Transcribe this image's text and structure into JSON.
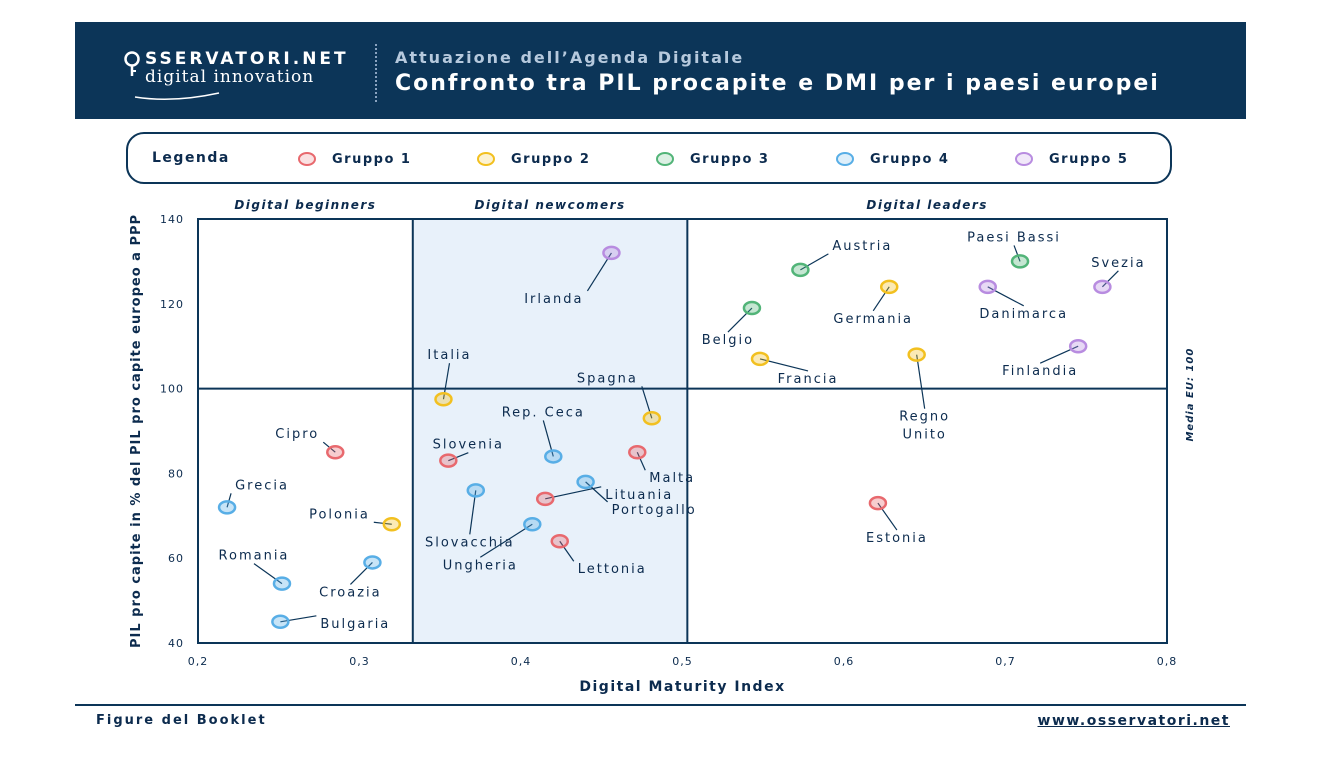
{
  "header": {
    "logo_top": "SSERVATORI.NET",
    "logo_bottom": "digital innovation",
    "subtitle": "Attuazione dell’Agenda Digitale",
    "title": "Confronto tra PIL procapite e DMI per i paesi europei"
  },
  "legend": {
    "title": "Legenda",
    "items": [
      {
        "label": "Gruppo 1",
        "color": "#e8696e"
      },
      {
        "label": "Gruppo 2",
        "color": "#f2c020"
      },
      {
        "label": "Gruppo 3",
        "color": "#52b478"
      },
      {
        "label": "Gruppo 4",
        "color": "#58aee6"
      },
      {
        "label": "Gruppo 5",
        "color": "#b88ce0"
      }
    ]
  },
  "footer": {
    "left": "Figure del Booklet",
    "right": "www.osservatori.net"
  },
  "chart_data": {
    "type": "scatter",
    "title": "Confronto tra PIL procapite e DMI per i paesi europei",
    "xlabel": "Digital Maturity Index",
    "ylabel": "PIL pro capite in % del PIL pro capite europeo a PPP",
    "xlim": [
      0.2,
      0.8
    ],
    "ylim": [
      40,
      140
    ],
    "x_ticks": [
      "0,2",
      "0,3",
      "0,4",
      "0,5",
      "0,6",
      "0,7",
      "0,8"
    ],
    "y_ticks": [
      "40",
      "60",
      "80",
      "100",
      "120",
      "140"
    ],
    "zones": [
      {
        "label": "Digital beginners",
        "from": 0.2,
        "to": 0.333,
        "highlight": false
      },
      {
        "label": "Digital newcomers",
        "from": 0.333,
        "to": 0.503,
        "highlight": true
      },
      {
        "label": "Digital leaders",
        "from": 0.503,
        "to": 0.8,
        "highlight": false
      }
    ],
    "reference_line": {
      "label": "Media EU: 100",
      "y": 100
    },
    "grid": false,
    "groups": [
      "Gruppo 1",
      "Gruppo 2",
      "Gruppo 3",
      "Gruppo 4",
      "Gruppo 5"
    ],
    "points": [
      {
        "label": "Irlanda",
        "x": 0.456,
        "y": 132,
        "group": 5
      },
      {
        "label": "Italia",
        "x": 0.352,
        "y": 97.5,
        "group": 2
      },
      {
        "label": "Spagna",
        "x": 0.481,
        "y": 93,
        "group": 2
      },
      {
        "label": "Rep. Ceca",
        "x": 0.42,
        "y": 84,
        "group": 4
      },
      {
        "label": "Slovenia",
        "x": 0.355,
        "y": 83,
        "group": 1
      },
      {
        "label": "Malta",
        "x": 0.472,
        "y": 85,
        "group": 1
      },
      {
        "label": "Slovacchia",
        "x": 0.372,
        "y": 76,
        "group": 4
      },
      {
        "label": "Portogallo",
        "x": 0.44,
        "y": 78,
        "group": 4
      },
      {
        "label": "Lituania",
        "x": 0.415,
        "y": 74,
        "group": 1
      },
      {
        "label": "Ungheria",
        "x": 0.407,
        "y": 68,
        "group": 4
      },
      {
        "label": "Lettonia",
        "x": 0.424,
        "y": 64,
        "group": 1
      },
      {
        "label": "Cipro",
        "x": 0.285,
        "y": 85,
        "group": 1
      },
      {
        "label": "Grecia",
        "x": 0.218,
        "y": 72,
        "group": 4
      },
      {
        "label": "Polonia",
        "x": 0.32,
        "y": 68,
        "group": 2
      },
      {
        "label": "Romania",
        "x": 0.252,
        "y": 54,
        "group": 4
      },
      {
        "label": "Croazia",
        "x": 0.308,
        "y": 59,
        "group": 4
      },
      {
        "label": "Bulgaria",
        "x": 0.251,
        "y": 45,
        "group": 4
      },
      {
        "label": "Austria",
        "x": 0.573,
        "y": 128,
        "group": 3
      },
      {
        "label": "Paesi Bassi",
        "x": 0.709,
        "y": 130,
        "group": 3
      },
      {
        "label": "Svezia",
        "x": 0.76,
        "y": 124,
        "group": 5
      },
      {
        "label": "Germania",
        "x": 0.628,
        "y": 124,
        "group": 2
      },
      {
        "label": "Danimarca",
        "x": 0.689,
        "y": 124,
        "group": 5
      },
      {
        "label": "Belgio",
        "x": 0.543,
        "y": 119,
        "group": 3
      },
      {
        "label": "Francia",
        "x": 0.548,
        "y": 107,
        "group": 2
      },
      {
        "label": "Regno Unito",
        "x": 0.645,
        "y": 108,
        "group": 2
      },
      {
        "label": "Finlandia",
        "x": 0.745,
        "y": 110,
        "group": 5
      },
      {
        "label": "Estonia",
        "x": 0.621,
        "y": 73,
        "group": 1
      }
    ]
  }
}
